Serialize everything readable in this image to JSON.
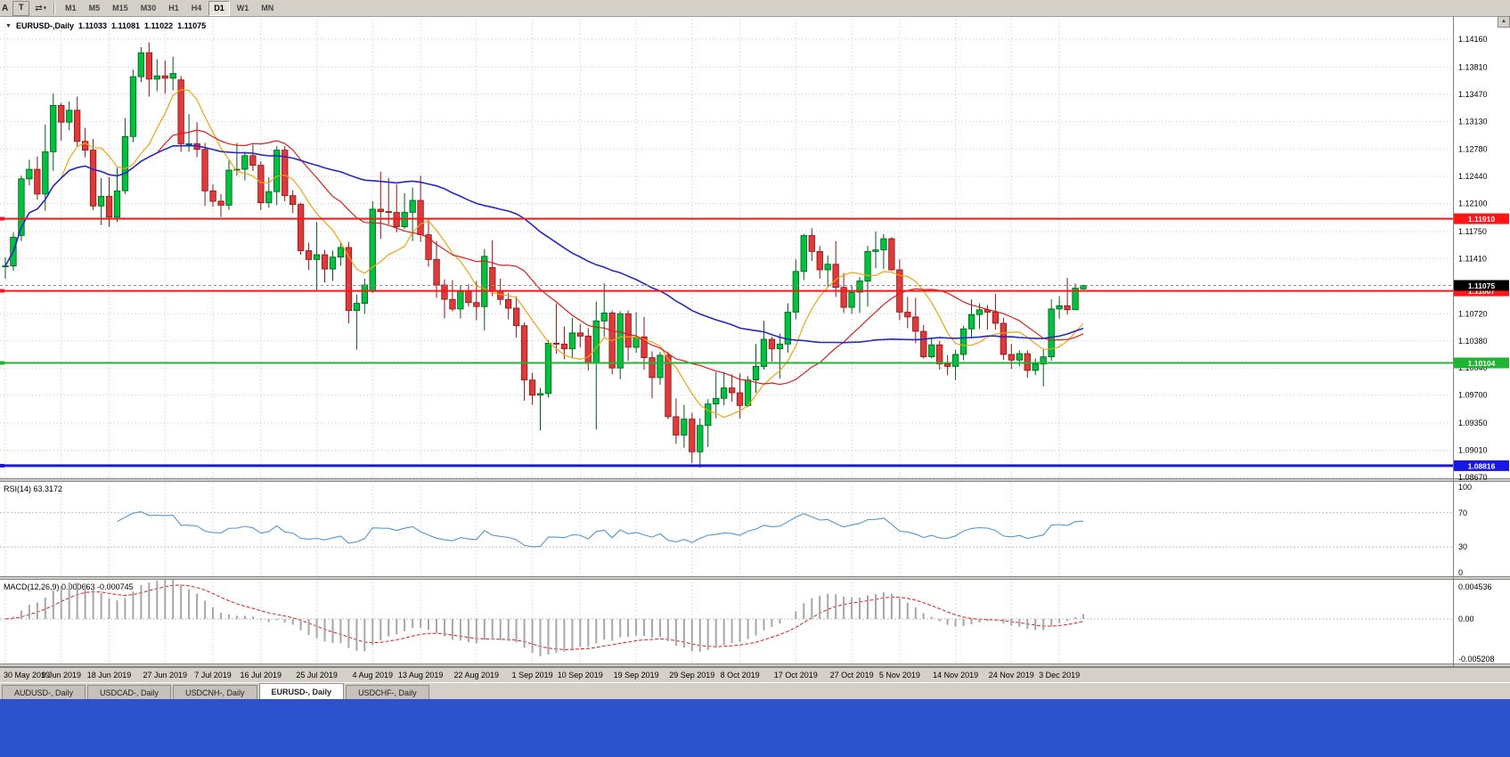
{
  "toolbar": {
    "item_a": "A",
    "item_t": "T",
    "chart_tool_icon": "⇄",
    "dropdown_arrow": "▾",
    "scroll_up_icon": "▲",
    "timeframes": [
      {
        "label": "M1"
      },
      {
        "label": "M5"
      },
      {
        "label": "M15"
      },
      {
        "label": "M30"
      },
      {
        "label": "H1"
      },
      {
        "label": "H4"
      },
      {
        "label": "D1",
        "active": true
      },
      {
        "label": "W1"
      },
      {
        "label": "MN"
      }
    ]
  },
  "chart_header": {
    "collapse_icon": "▼",
    "symbol": "EURUSD-,Daily",
    "open": "1.11033",
    "high": "1.11081",
    "low": "1.11022",
    "close": "1.11075"
  },
  "chart_data": {
    "type": "candlestick",
    "symbol": "EURUSD-",
    "timeframe": "Daily",
    "price_axis_labels": [
      "1.14160",
      "1.13810",
      "1.13470",
      "1.13130",
      "1.12780",
      "1.12440",
      "1.12100",
      "1.11750",
      "1.11410",
      "1.10720",
      "1.10380",
      "1.10040",
      "1.09700",
      "1.09350",
      "1.09010",
      "1.08670"
    ],
    "current_price": {
      "value": 1.11075,
      "label": "1.11075",
      "tag_bg": "#000000"
    },
    "levels": [
      {
        "label": "1.11910",
        "value": 1.1191,
        "color": "#ff1515",
        "width": 2,
        "type": "resistance"
      },
      {
        "label": "1.11007",
        "value": 1.11007,
        "color": "#ff1515",
        "width": 2,
        "type": "resistance"
      },
      {
        "label": "1.10104",
        "value": 1.10104,
        "color": "#1fb432",
        "width": 2,
        "type": "support"
      },
      {
        "label": "1.08816",
        "value": 1.08816,
        "color": "#1717e6",
        "width": 3,
        "type": "support"
      }
    ],
    "date_labels": [
      {
        "label": "30 May 2019",
        "index": 0
      },
      {
        "label": "9 Jun 2019",
        "index": 7
      },
      {
        "label": "18 Jun 2019",
        "index": 13
      },
      {
        "label": "27 Jun 2019",
        "index": 20
      },
      {
        "label": "7 Jul 2019",
        "index": 26
      },
      {
        "label": "16 Jul 2019",
        "index": 32
      },
      {
        "label": "25 Jul 2019",
        "index": 39
      },
      {
        "label": "4 Aug 2019",
        "index": 46
      },
      {
        "label": "13 Aug 2019",
        "index": 52
      },
      {
        "label": "22 Aug 2019",
        "index": 59
      },
      {
        "label": "1 Sep 2019",
        "index": 66
      },
      {
        "label": "10 Sep 2019",
        "index": 72
      },
      {
        "label": "19 Sep 2019",
        "index": 79
      },
      {
        "label": "29 Sep 2019",
        "index": 86
      },
      {
        "label": "8 Oct 2019",
        "index": 92
      },
      {
        "label": "17 Oct 2019",
        "index": 99
      },
      {
        "label": "27 Oct 2019",
        "index": 106
      },
      {
        "label": "5 Nov 2019",
        "index": 112
      },
      {
        "label": "14 Nov 2019",
        "index": 119
      },
      {
        "label": "24 Nov 2019",
        "index": 126
      },
      {
        "label": "3 Dec 2019",
        "index": 132
      }
    ],
    "candles": [
      [
        1.1131,
        1.1143,
        1.1116,
        1.1132
      ],
      [
        1.1132,
        1.1174,
        1.1126,
        1.1168
      ],
      [
        1.117,
        1.1245,
        1.1163,
        1.1241
      ],
      [
        1.1241,
        1.1265,
        1.1233,
        1.1253
      ],
      [
        1.1253,
        1.1269,
        1.1215,
        1.1222
      ],
      [
        1.1222,
        1.1309,
        1.1201,
        1.1275
      ],
      [
        1.1275,
        1.1348,
        1.1251,
        1.1333
      ],
      [
        1.1333,
        1.1336,
        1.1289,
        1.1312
      ],
      [
        1.1312,
        1.1338,
        1.1302,
        1.1327
      ],
      [
        1.1327,
        1.1344,
        1.1281,
        1.1288
      ],
      [
        1.1288,
        1.1305,
        1.1268,
        1.1277
      ],
      [
        1.1277,
        1.1291,
        1.1202,
        1.1207
      ],
      [
        1.1207,
        1.1242,
        1.1183,
        1.1219
      ],
      [
        1.1219,
        1.1243,
        1.1181,
        1.1193
      ],
      [
        1.1193,
        1.1255,
        1.1187,
        1.1226
      ],
      [
        1.1226,
        1.1317,
        1.1222,
        1.1294
      ],
      [
        1.1294,
        1.1378,
        1.1287,
        1.1369
      ],
      [
        1.1369,
        1.1406,
        1.1362,
        1.1399
      ],
      [
        1.1399,
        1.1412,
        1.1344,
        1.1366
      ],
      [
        1.1366,
        1.1391,
        1.1351,
        1.137
      ],
      [
        1.137,
        1.1389,
        1.1348,
        1.1367
      ],
      [
        1.1367,
        1.1394,
        1.1352,
        1.1373
      ],
      [
        1.1365,
        1.137,
        1.1275,
        1.1285
      ],
      [
        1.1285,
        1.1322,
        1.1275,
        1.1285
      ],
      [
        1.1285,
        1.1312,
        1.1268,
        1.1278
      ],
      [
        1.1278,
        1.1286,
        1.1207,
        1.1226
      ],
      [
        1.1226,
        1.1234,
        1.1206,
        1.1213
      ],
      [
        1.1213,
        1.1222,
        1.1193,
        1.1208
      ],
      [
        1.1208,
        1.1264,
        1.1202,
        1.1252
      ],
      [
        1.1252,
        1.1286,
        1.1245,
        1.1253
      ],
      [
        1.1253,
        1.1275,
        1.1239,
        1.127
      ],
      [
        1.127,
        1.1284,
        1.1251,
        1.1258
      ],
      [
        1.1258,
        1.1263,
        1.1202,
        1.1211
      ],
      [
        1.1211,
        1.1243,
        1.1205,
        1.1225
      ],
      [
        1.1225,
        1.1282,
        1.1208,
        1.1277
      ],
      [
        1.1277,
        1.1282,
        1.1213,
        1.122
      ],
      [
        1.122,
        1.1227,
        1.1198,
        1.1209
      ],
      [
        1.1209,
        1.1211,
        1.1146,
        1.1151
      ],
      [
        1.1151,
        1.1161,
        1.1127,
        1.114
      ],
      [
        1.114,
        1.1187,
        1.1101,
        1.1146
      ],
      [
        1.1146,
        1.1152,
        1.1111,
        1.1128
      ],
      [
        1.1128,
        1.1151,
        1.1113,
        1.1143
      ],
      [
        1.1143,
        1.1162,
        1.1132,
        1.1155
      ],
      [
        1.1155,
        1.1162,
        1.106,
        1.1076
      ],
      [
        1.1076,
        1.1096,
        1.1027,
        1.1085
      ],
      [
        1.1085,
        1.1116,
        1.1072,
        1.1108
      ],
      [
        1.11,
        1.1213,
        1.1098,
        1.1203
      ],
      [
        1.1203,
        1.125,
        1.1166,
        1.12
      ],
      [
        1.12,
        1.1242,
        1.1184,
        1.1199
      ],
      [
        1.1199,
        1.1234,
        1.1174,
        1.1181
      ],
      [
        1.1181,
        1.1223,
        1.1178,
        1.1199
      ],
      [
        1.1199,
        1.123,
        1.1163,
        1.1214
      ],
      [
        1.1214,
        1.1245,
        1.1162,
        1.1171
      ],
      [
        1.1171,
        1.1192,
        1.1131,
        1.114
      ],
      [
        1.114,
        1.1163,
        1.1092,
        1.1108
      ],
      [
        1.1108,
        1.1115,
        1.1066,
        1.109
      ],
      [
        1.109,
        1.1114,
        1.1075,
        1.1078
      ],
      [
        1.1078,
        1.1107,
        1.1066,
        1.11
      ],
      [
        1.11,
        1.1109,
        1.1081,
        1.1086
      ],
      [
        1.1086,
        1.1113,
        1.1064,
        1.1081
      ],
      [
        1.1081,
        1.1153,
        1.1051,
        1.1144
      ],
      [
        1.113,
        1.1164,
        1.1094,
        1.1101
      ],
      [
        1.1101,
        1.1116,
        1.1083,
        1.109
      ],
      [
        1.109,
        1.1098,
        1.1065,
        1.1079
      ],
      [
        1.1079,
        1.1094,
        1.1042,
        1.1057
      ],
      [
        1.1057,
        1.1061,
        1.0963,
        1.0989
      ],
      [
        1.0989,
        1.0998,
        1.0958,
        1.097
      ],
      [
        1.097,
        1.0979,
        1.0926,
        1.0972
      ],
      [
        1.0972,
        1.1039,
        1.0967,
        1.1035
      ],
      [
        1.1035,
        1.1085,
        1.1022,
        1.1034
      ],
      [
        1.1034,
        1.1056,
        1.1015,
        1.1028
      ],
      [
        1.1028,
        1.1067,
        1.1016,
        1.1048
      ],
      [
        1.1048,
        1.1059,
        1.103,
        1.1044
      ],
      [
        1.1044,
        1.1054,
        1.1001,
        1.1011
      ],
      [
        1.1011,
        1.1087,
        1.0927,
        1.1063
      ],
      [
        1.1063,
        1.111,
        1.1043,
        1.1073
      ],
      [
        1.1073,
        1.1076,
        1.0996,
        1.1004
      ],
      [
        1.1004,
        1.1075,
        1.099,
        1.1072
      ],
      [
        1.1072,
        1.1076,
        1.1013,
        1.103
      ],
      [
        1.103,
        1.1074,
        1.1023,
        1.1043
      ],
      [
        1.1043,
        1.1068,
        1.1002,
        1.1017
      ],
      [
        1.1017,
        1.1025,
        1.0966,
        1.0992
      ],
      [
        1.0992,
        1.1024,
        1.0983,
        1.102
      ],
      [
        1.102,
        1.1024,
        1.094,
        1.0943
      ],
      [
        1.0943,
        1.0966,
        1.0909,
        1.092
      ],
      [
        1.092,
        1.0958,
        1.0904,
        1.094
      ],
      [
        1.094,
        1.0948,
        1.0885,
        1.0899
      ],
      [
        1.0899,
        1.0941,
        1.0879,
        1.0932
      ],
      [
        1.0932,
        1.0965,
        1.0905,
        1.0959
      ],
      [
        1.0959,
        1.0999,
        1.0941,
        1.0966
      ],
      [
        1.0966,
        1.0999,
        1.0957,
        1.0979
      ],
      [
        1.0979,
        1.0996,
        1.0962,
        1.0973
      ],
      [
        1.0973,
        1.0997,
        1.0941,
        1.0957
      ],
      [
        1.0957,
        1.0994,
        1.0955,
        1.0989
      ],
      [
        1.0989,
        1.1034,
        1.0973,
        1.1006
      ],
      [
        1.1006,
        1.1063,
        1.1002,
        1.104
      ],
      [
        1.104,
        1.1043,
        1.1012,
        1.1028
      ],
      [
        1.1028,
        1.1047,
        1.0991,
        1.1034
      ],
      [
        1.1034,
        1.1085,
        1.1023,
        1.1074
      ],
      [
        1.1074,
        1.114,
        1.1065,
        1.1125
      ],
      [
        1.1125,
        1.1172,
        1.1114,
        1.117
      ],
      [
        1.117,
        1.1179,
        1.1138,
        1.115
      ],
      [
        1.115,
        1.1157,
        1.1116,
        1.1127
      ],
      [
        1.1127,
        1.1145,
        1.1106,
        1.1134
      ],
      [
        1.1134,
        1.1163,
        1.1093,
        1.1105
      ],
      [
        1.1105,
        1.1123,
        1.1073,
        1.108
      ],
      [
        1.108,
        1.1107,
        1.1072,
        1.1099
      ],
      [
        1.1099,
        1.1118,
        1.1073,
        1.1113
      ],
      [
        1.1113,
        1.1157,
        1.1081,
        1.115
      ],
      [
        1.115,
        1.1175,
        1.1129,
        1.1152
      ],
      [
        1.1152,
        1.1172,
        1.1128,
        1.1166
      ],
      [
        1.1166,
        1.1168,
        1.1126,
        1.1127
      ],
      [
        1.1127,
        1.114,
        1.1064,
        1.1074
      ],
      [
        1.1074,
        1.1093,
        1.1054,
        1.1068
      ],
      [
        1.1068,
        1.1092,
        1.1035,
        1.105
      ],
      [
        1.105,
        1.1058,
        1.1016,
        1.1018
      ],
      [
        1.1018,
        1.1042,
        1.1016,
        1.1033
      ],
      [
        1.1033,
        1.1038,
        1.1002,
        1.1009
      ],
      [
        1.1009,
        1.102,
        1.0995,
        1.1006
      ],
      [
        1.1006,
        1.1027,
        1.0989,
        1.1021
      ],
      [
        1.1021,
        1.1057,
        1.1014,
        1.1053
      ],
      [
        1.1053,
        1.109,
        1.1041,
        1.1071
      ],
      [
        1.1071,
        1.1085,
        1.1053,
        1.1077
      ],
      [
        1.1077,
        1.1083,
        1.1052,
        1.1074
      ],
      [
        1.1074,
        1.1097,
        1.1052,
        1.106
      ],
      [
        1.106,
        1.1067,
        1.1014,
        1.1021
      ],
      [
        1.1021,
        1.1034,
        1.1003,
        1.1014
      ],
      [
        1.1014,
        1.1026,
        1.1006,
        1.1022
      ],
      [
        1.1022,
        1.1026,
        1.0992,
        1.1001
      ],
      [
        1.1001,
        1.1016,
        1.0995,
        1.1009
      ],
      [
        1.1009,
        1.1028,
        1.0981,
        1.1018
      ],
      [
        1.1018,
        1.109,
        1.1013,
        1.1078
      ],
      [
        1.1078,
        1.1094,
        1.1066,
        1.1082
      ],
      [
        1.1082,
        1.1117,
        1.1071,
        1.1077
      ],
      [
        1.1077,
        1.111,
        1.1077,
        1.1104
      ],
      [
        1.11033,
        1.11081,
        1.11022,
        1.11075
      ]
    ],
    "moving_averages": [
      {
        "name": "fast",
        "period": 8,
        "color": "#f2a20d"
      },
      {
        "name": "medium",
        "period": 20,
        "color": "#e11b1b"
      },
      {
        "name": "slow",
        "period": 50,
        "color": "#2328c8"
      }
    ],
    "indicators": {
      "rsi": {
        "label": "RSI(14) 63.3172",
        "period": 14,
        "value": "63.3172",
        "axis_labels": [
          "100",
          "70",
          "30",
          "0"
        ],
        "guide_levels": [
          70,
          30
        ],
        "line_color": "#4f96d2"
      },
      "macd": {
        "label": "MACD(12,26,9) 0.000663 -0.000745",
        "fast": 12,
        "slow": 26,
        "signal": 9,
        "main_value": "0.000663",
        "signal_value": "-0.000745",
        "axis_labels": [
          "0.004536",
          "0.00",
          "-0.005208"
        ],
        "axis_max": 0.004536,
        "axis_min": -0.005208,
        "hist_color": "#a6a6a6",
        "signal_color": "#e11b1b"
      }
    },
    "colors": {
      "bull": "#00c23c",
      "bull_border": "#005a1b",
      "bear": "#df3a3a",
      "bear_border": "#8c1212",
      "grid": "#c6c6c6",
      "background": "#ffffff",
      "scale_bar": "#d4d0c8",
      "bid_line": "#8a8a8a"
    }
  },
  "tabs": [
    {
      "label": "AUDUSD-, Daily"
    },
    {
      "label": "USDCAD-, Daily"
    },
    {
      "label": "USDCNH-, Daily"
    },
    {
      "label": "EURUSD-, Daily",
      "active": true
    },
    {
      "label": "USDCHF-, Daily"
    }
  ]
}
